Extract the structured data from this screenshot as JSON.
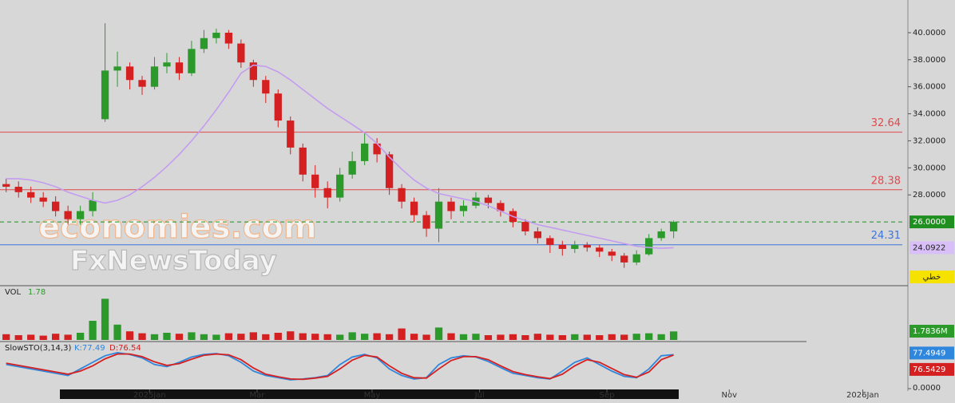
{
  "chart_data": [
    {
      "type": "candlestick",
      "xlim": [
        0,
        73
      ],
      "xticks": [
        {
          "value": 12.1,
          "label": "2025Jan"
        },
        {
          "value": 20.8,
          "label": "Mar"
        },
        {
          "value": 30.1,
          "label": "May"
        },
        {
          "value": 38.8,
          "label": "Jul"
        },
        {
          "value": 49.1,
          "label": "Sep"
        },
        {
          "value": 59.0,
          "label": "Nov"
        },
        {
          "value": 69.8,
          "label": "2026Jan"
        }
      ],
      "ylim": [
        21.28,
        42.42
      ],
      "yticks": [
        {
          "value": 28,
          "label": "28.0000"
        },
        {
          "value": 30,
          "label": "30.0000"
        },
        {
          "value": 32,
          "label": "32.0000"
        },
        {
          "value": 34,
          "label": "34.0000"
        },
        {
          "value": 36,
          "label": "36.0000"
        },
        {
          "value": 38,
          "label": "38.0000"
        },
        {
          "value": 40,
          "label": "40.0000"
        }
      ],
      "up_color": "#2b9a2b",
      "down_color": "#d42020",
      "open": [
        28.8,
        28.6,
        28.2,
        27.8,
        27.5,
        26.8,
        26.2,
        26.8,
        33.6,
        37.2,
        37.5,
        36.5,
        36.0,
        37.5,
        37.8,
        37.0,
        38.8,
        39.6,
        40.0,
        39.2,
        37.8,
        36.5,
        35.5,
        33.5,
        31.5,
        29.5,
        28.5,
        27.8,
        29.5,
        30.5,
        31.8,
        31.0,
        28.5,
        27.5,
        26.5,
        25.5,
        27.5,
        26.8,
        27.2,
        27.8,
        27.4,
        26.8,
        26.0,
        25.3,
        24.8,
        24.3,
        24.0,
        24.3,
        24.1,
        23.8,
        23.5,
        23.0,
        23.6,
        24.8,
        25.3
      ],
      "high": [
        29.2,
        29.0,
        28.6,
        28.2,
        27.9,
        27.2,
        27.2,
        28.2,
        40.7,
        38.6,
        37.8,
        36.8,
        38.2,
        38.5,
        38.2,
        39.4,
        40.2,
        40.3,
        40.2,
        39.5,
        38.0,
        36.8,
        35.8,
        33.8,
        31.8,
        30.2,
        29.0,
        30.0,
        31.2,
        32.6,
        32.2,
        31.2,
        28.8,
        27.8,
        26.8,
        28.5,
        27.8,
        27.6,
        28.2,
        28.0,
        27.6,
        27.0,
        26.2,
        25.6,
        25.0,
        24.6,
        24.6,
        24.5,
        24.3,
        24.0,
        23.7,
        23.9,
        25.1,
        25.5,
        26.1
      ],
      "low": [
        28.2,
        27.8,
        27.4,
        27.1,
        26.4,
        25.8,
        25.8,
        26.4,
        33.4,
        36.0,
        35.8,
        35.4,
        35.8,
        37.0,
        36.5,
        36.8,
        38.5,
        39.2,
        38.8,
        37.4,
        36.0,
        34.8,
        33.0,
        31.0,
        29.0,
        27.8,
        27.0,
        27.5,
        29.2,
        30.2,
        30.4,
        28.0,
        27.0,
        26.0,
        24.9,
        24.5,
        26.2,
        26.4,
        27.0,
        27.0,
        26.4,
        25.6,
        25.0,
        24.4,
        23.7,
        23.5,
        23.7,
        23.8,
        23.4,
        23.1,
        22.6,
        22.8,
        23.5,
        24.6,
        24.8
      ],
      "close": [
        28.6,
        28.2,
        27.8,
        27.5,
        26.8,
        26.2,
        26.8,
        27.6,
        37.2,
        37.5,
        36.5,
        36.0,
        37.5,
        37.8,
        37.0,
        38.8,
        39.6,
        40.0,
        39.2,
        37.8,
        36.5,
        35.5,
        33.5,
        31.5,
        29.5,
        28.5,
        27.8,
        29.5,
        30.5,
        31.8,
        31.0,
        28.5,
        27.5,
        26.5,
        25.5,
        27.5,
        26.8,
        27.2,
        27.8,
        27.4,
        26.8,
        26.0,
        25.3,
        24.8,
        24.3,
        24.0,
        24.3,
        24.1,
        23.8,
        23.5,
        23.0,
        23.6,
        24.8,
        25.3,
        26.0
      ],
      "ma": {
        "color": "#c49cf0",
        "values": [
          29.2,
          29.2,
          29.1,
          28.9,
          28.6,
          28.2,
          27.9,
          27.6,
          27.4,
          27.6,
          28.0,
          28.6,
          29.3,
          30.1,
          31.0,
          32.0,
          33.1,
          34.3,
          35.6,
          37.0,
          37.6,
          37.5,
          37.1,
          36.5,
          35.8,
          35.1,
          34.4,
          33.8,
          33.2,
          32.6,
          31.8,
          30.8,
          29.9,
          29.1,
          28.5,
          28.1,
          27.9,
          27.7,
          27.5,
          27.2,
          26.8,
          26.4,
          26.1,
          25.8,
          25.6,
          25.4,
          25.2,
          25.0,
          24.8,
          24.6,
          24.4,
          24.2,
          24.1,
          24.05,
          24.0922
        ]
      },
      "levels": [
        {
          "value": 32.64,
          "color": "#e0494d"
        },
        {
          "value": 28.38,
          "color": "#e0494d"
        },
        {
          "value": 24.31,
          "color": "#3f73dc"
        }
      ],
      "last_price": {
        "value": 26,
        "label": "26.0000",
        "color": "#1f8f1f"
      },
      "ma_marker": {
        "value": 24.0922,
        "label": "24.0922",
        "color": "#d8bff7"
      },
      "scale_mode": "خطي",
      "watermark": [
        "economies.com",
        "FxNewsToday"
      ]
    },
    {
      "type": "volume",
      "label": "VOL",
      "last_label": "1.78",
      "ylim": [
        0,
        9
      ],
      "values": [
        1.2,
        1.0,
        1.1,
        0.9,
        1.3,
        1.1,
        1.5,
        4.0,
        8.6,
        3.2,
        1.8,
        1.4,
        1.2,
        1.5,
        1.3,
        1.6,
        1.2,
        1.1,
        1.4,
        1.3,
        1.6,
        1.2,
        1.5,
        1.8,
        1.4,
        1.3,
        1.2,
        1.1,
        1.6,
        1.3,
        1.4,
        1.2,
        2.4,
        1.3,
        1.1,
        2.6,
        1.4,
        1.2,
        1.3,
        1.0,
        1.1,
        1.2,
        1.0,
        1.3,
        1.1,
        1.0,
        1.2,
        1.1,
        1.0,
        1.2,
        1.1,
        1.3,
        1.4,
        1.2,
        1.7836
      ],
      "marker": {
        "value": 1.7836,
        "label": "1.7836M",
        "color": "#2b9a2b"
      }
    },
    {
      "type": "stochastic",
      "label": "SlowSTO(3,14,3)",
      "k_label": "K:77.49",
      "d_label": "D:76.54",
      "ylim": [
        0,
        100
      ],
      "yticks": [
        {
          "value": 0,
          "label": "0.0000"
        }
      ],
      "series": [
        {
          "color": "#2f86dd",
          "values": [
            55,
            50,
            45,
            40,
            35,
            30,
            45,
            60,
            75,
            82,
            78,
            70,
            55,
            50,
            60,
            72,
            78,
            80,
            75,
            60,
            40,
            30,
            25,
            20,
            22,
            25,
            30,
            55,
            72,
            78,
            70,
            45,
            30,
            22,
            25,
            55,
            70,
            75,
            72,
            62,
            48,
            35,
            30,
            25,
            22,
            40,
            60,
            70,
            55,
            40,
            28,
            25,
            45,
            75,
            77.49
          ]
        },
        {
          "color": "#d42020",
          "values": [
            58,
            53,
            48,
            43,
            38,
            33,
            40,
            52,
            68,
            79,
            79,
            73,
            61,
            53,
            57,
            67,
            76,
            79,
            77,
            66,
            47,
            33,
            27,
            22,
            21,
            24,
            28,
            45,
            65,
            76,
            72,
            52,
            35,
            25,
            24,
            45,
            64,
            73,
            73,
            66,
            52,
            39,
            32,
            27,
            23,
            33,
            52,
            66,
            60,
            46,
            32,
            26,
            38,
            66,
            76.54
          ]
        }
      ],
      "markers": [
        {
          "value": 77.4949,
          "label": "77.4949",
          "color": "#2f86dd"
        },
        {
          "value": 76.5429,
          "label": "76.5429",
          "color": "#d42020"
        }
      ]
    }
  ]
}
